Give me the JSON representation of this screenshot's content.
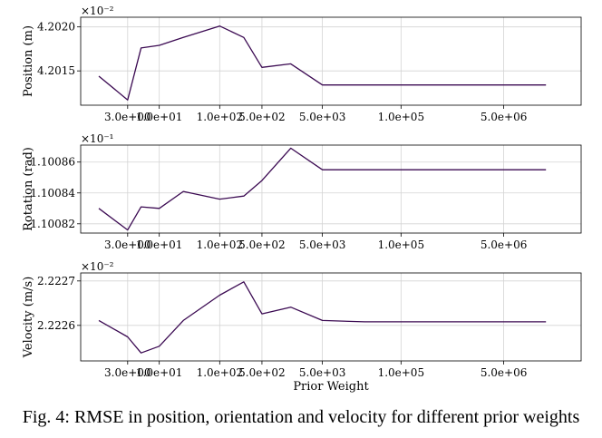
{
  "caption": "Fig. 4: RMSE in position, orientation and velocity for different prior weights",
  "line_color": "#3b0a52",
  "chart_data": [
    {
      "type": "line",
      "ylabel": "Position (m)",
      "xlabel": "",
      "multiplier": "×10⁻²",
      "x_scale": "log",
      "grid": true,
      "xticks": [
        3,
        10,
        100,
        500,
        5000,
        100000,
        5000000
      ],
      "xtick_labels": [
        "3.0e+00",
        "1.0e+01",
        "1.0e+02",
        "5.0e+02",
        "5.0e+03",
        "1.0e+05",
        "5.0e+06"
      ],
      "yticks": [
        4.2015,
        4.202
      ],
      "ytick_labels": [
        "4.2015",
        "4.2020"
      ],
      "ylim": [
        4.20111,
        4.20211
      ],
      "x": [
        1,
        3,
        5,
        10,
        25,
        100,
        250,
        500,
        1500,
        5000,
        25000,
        100000,
        5000000,
        25000000
      ],
      "y": [
        4.20144,
        4.20117,
        4.20176,
        4.20179,
        4.20188,
        4.20201,
        4.20188,
        4.20154,
        4.20158,
        4.20134,
        4.20134,
        4.20134,
        4.20134,
        4.20134
      ]
    },
    {
      "type": "line",
      "ylabel": "Rotation (rad)",
      "xlabel": "",
      "multiplier": "×10⁻¹",
      "x_scale": "log",
      "grid": true,
      "xticks": [
        3,
        10,
        100,
        500,
        5000,
        100000,
        5000000
      ],
      "xtick_labels": [
        "3.0e+00",
        "1.0e+01",
        "1.0e+02",
        "5.0e+02",
        "5.0e+03",
        "1.0e+05",
        "5.0e+06"
      ],
      "yticks": [
        1.10082,
        1.10084,
        1.10086
      ],
      "ytick_labels": [
        "1.10082",
        "1.10084",
        "1.10086"
      ],
      "ylim": [
        1.100814,
        1.100871
      ],
      "x": [
        1,
        3,
        5,
        10,
        25,
        100,
        250,
        500,
        1500,
        5000,
        25000,
        100000,
        5000000,
        25000000
      ],
      "y": [
        1.10083,
        1.100816,
        1.100831,
        1.10083,
        1.100841,
        1.100836,
        1.100838,
        1.100848,
        1.100869,
        1.100855,
        1.100855,
        1.100855,
        1.100855,
        1.100855
      ]
    },
    {
      "type": "line",
      "ylabel": "Velocity (m/s)",
      "xlabel": "Prior Weight",
      "multiplier": "×10⁻²",
      "x_scale": "log",
      "grid": true,
      "xticks": [
        3,
        10,
        100,
        500,
        5000,
        100000,
        5000000
      ],
      "xtick_labels": [
        "3.0e+00",
        "1.0e+01",
        "1.0e+02",
        "5.0e+02",
        "5.0e+03",
        "1.0e+05",
        "5.0e+06"
      ],
      "yticks": [
        2.2226,
        2.2227
      ],
      "ytick_labels": [
        "2.2226",
        "2.2227"
      ],
      "ylim": [
        2.22252,
        2.222718
      ],
      "x": [
        1,
        3,
        5,
        10,
        25,
        100,
        250,
        500,
        1500,
        5000,
        25000,
        100000,
        5000000,
        25000000
      ],
      "y": [
        2.222611,
        2.222574,
        2.222538,
        2.222553,
        2.222611,
        2.222668,
        2.222698,
        2.222626,
        2.222641,
        2.222611,
        2.222608,
        2.222608,
        2.222608,
        2.222608
      ]
    }
  ]
}
